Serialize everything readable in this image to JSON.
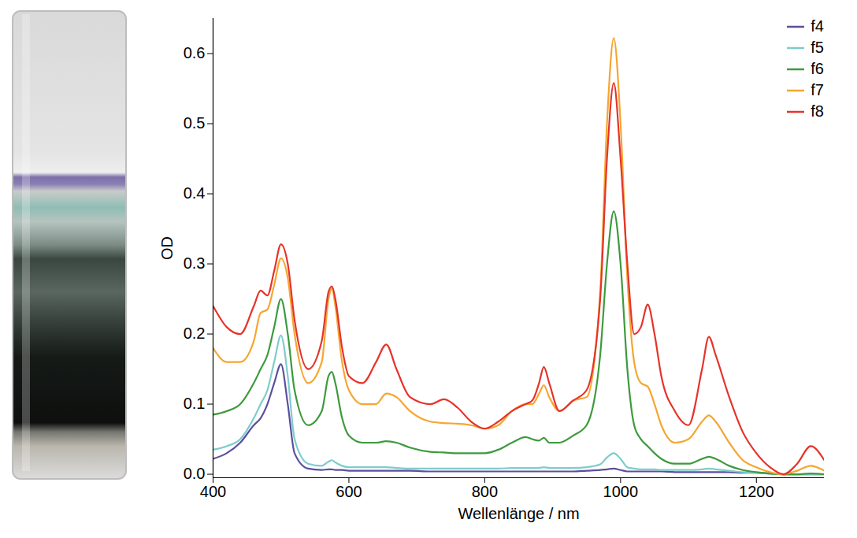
{
  "chart_data": {
    "type": "line",
    "x_label": "Wellenlänge / nm",
    "y_label": "OD",
    "xlim": [
      400,
      1300
    ],
    "xticks": [
      400,
      600,
      800,
      1000,
      1200
    ],
    "ylim": [
      -0.005,
      0.65
    ],
    "yticks": [
      {
        "value": 0,
        "label": "0.0"
      },
      0.1,
      0.2,
      0.3,
      0.4,
      0.5,
      0.6
    ],
    "grid": false,
    "legend": "top-right",
    "x": [
      400,
      420,
      440,
      460,
      470,
      480,
      490,
      500,
      510,
      520,
      540,
      560,
      570,
      575,
      580,
      590,
      600,
      620,
      640,
      655,
      670,
      690,
      720,
      740,
      760,
      780,
      800,
      820,
      840,
      860,
      870,
      880,
      887,
      895,
      910,
      930,
      950,
      970,
      980,
      990,
      1000,
      1010,
      1020,
      1030,
      1040,
      1050,
      1060,
      1080,
      1100,
      1120,
      1130,
      1140,
      1160,
      1180,
      1200,
      1220,
      1240,
      1260,
      1280,
      1300
    ],
    "series": [
      {
        "name": "f4",
        "color": "#5b4f9e",
        "values": [
          0.022,
          0.03,
          0.045,
          0.07,
          0.08,
          0.1,
          0.13,
          0.157,
          0.1,
          0.03,
          0.008,
          0.006,
          0.007,
          0.007,
          0.006,
          0.006,
          0.005,
          0.005,
          0.005,
          0.005,
          0.005,
          0.005,
          0.004,
          0.004,
          0.004,
          0.004,
          0.004,
          0.004,
          0.004,
          0.004,
          0.004,
          0.004,
          0.004,
          0.004,
          0.004,
          0.004,
          0.005,
          0.006,
          0.007,
          0.008,
          0.006,
          0.004,
          0.004,
          0.004,
          0.004,
          0.004,
          0.004,
          0.003,
          0.003,
          0.003,
          0.003,
          0.003,
          0.003,
          0.002,
          0.002,
          0.001,
          0.0,
          0.0,
          0.0,
          0.0
        ]
      },
      {
        "name": "f5",
        "color": "#7ecccc",
        "values": [
          0.035,
          0.04,
          0.05,
          0.08,
          0.1,
          0.12,
          0.16,
          0.198,
          0.14,
          0.05,
          0.015,
          0.012,
          0.018,
          0.02,
          0.017,
          0.012,
          0.01,
          0.01,
          0.01,
          0.01,
          0.009,
          0.008,
          0.008,
          0.008,
          0.008,
          0.008,
          0.008,
          0.008,
          0.009,
          0.009,
          0.009,
          0.009,
          0.01,
          0.009,
          0.009,
          0.009,
          0.01,
          0.014,
          0.024,
          0.03,
          0.022,
          0.01,
          0.008,
          0.007,
          0.007,
          0.007,
          0.006,
          0.006,
          0.006,
          0.007,
          0.008,
          0.007,
          0.005,
          0.003,
          0.002,
          0.001,
          0.0,
          0.0,
          0.0,
          0.0
        ]
      },
      {
        "name": "f6",
        "color": "#3d9a3d",
        "values": [
          0.085,
          0.09,
          0.1,
          0.13,
          0.15,
          0.17,
          0.21,
          0.25,
          0.2,
          0.12,
          0.07,
          0.09,
          0.14,
          0.146,
          0.13,
          0.08,
          0.055,
          0.045,
          0.045,
          0.047,
          0.045,
          0.038,
          0.032,
          0.031,
          0.03,
          0.03,
          0.03,
          0.035,
          0.045,
          0.053,
          0.05,
          0.048,
          0.052,
          0.045,
          0.045,
          0.055,
          0.07,
          0.17,
          0.3,
          0.375,
          0.3,
          0.15,
          0.07,
          0.05,
          0.04,
          0.03,
          0.022,
          0.015,
          0.015,
          0.022,
          0.025,
          0.022,
          0.012,
          0.006,
          0.003,
          0.001,
          0.0,
          0.0,
          0.001,
          0.0
        ]
      },
      {
        "name": "f7",
        "color": "#f5a630",
        "values": [
          0.18,
          0.16,
          0.16,
          0.19,
          0.23,
          0.235,
          0.27,
          0.308,
          0.28,
          0.2,
          0.13,
          0.16,
          0.25,
          0.265,
          0.24,
          0.16,
          0.12,
          0.1,
          0.1,
          0.115,
          0.11,
          0.09,
          0.075,
          0.073,
          0.072,
          0.07,
          0.065,
          0.07,
          0.09,
          0.1,
          0.1,
          0.115,
          0.127,
          0.11,
          0.09,
          0.105,
          0.11,
          0.26,
          0.5,
          0.622,
          0.5,
          0.28,
          0.16,
          0.13,
          0.125,
          0.1,
          0.07,
          0.045,
          0.05,
          0.075,
          0.084,
          0.075,
          0.045,
          0.02,
          0.01,
          0.003,
          0.0,
          0.005,
          0.012,
          0.005
        ]
      },
      {
        "name": "f8",
        "color": "#e6332a",
        "values": [
          0.24,
          0.21,
          0.2,
          0.24,
          0.262,
          0.255,
          0.29,
          0.328,
          0.3,
          0.22,
          0.15,
          0.19,
          0.26,
          0.268,
          0.25,
          0.18,
          0.14,
          0.13,
          0.16,
          0.185,
          0.15,
          0.11,
          0.1,
          0.107,
          0.095,
          0.075,
          0.065,
          0.075,
          0.09,
          0.1,
          0.105,
          0.13,
          0.153,
          0.13,
          0.09,
          0.105,
          0.12,
          0.25,
          0.45,
          0.558,
          0.45,
          0.3,
          0.2,
          0.21,
          0.242,
          0.2,
          0.14,
          0.09,
          0.07,
          0.15,
          0.196,
          0.17,
          0.11,
          0.06,
          0.03,
          0.01,
          0.0,
          0.015,
          0.04,
          0.02
        ]
      }
    ]
  }
}
